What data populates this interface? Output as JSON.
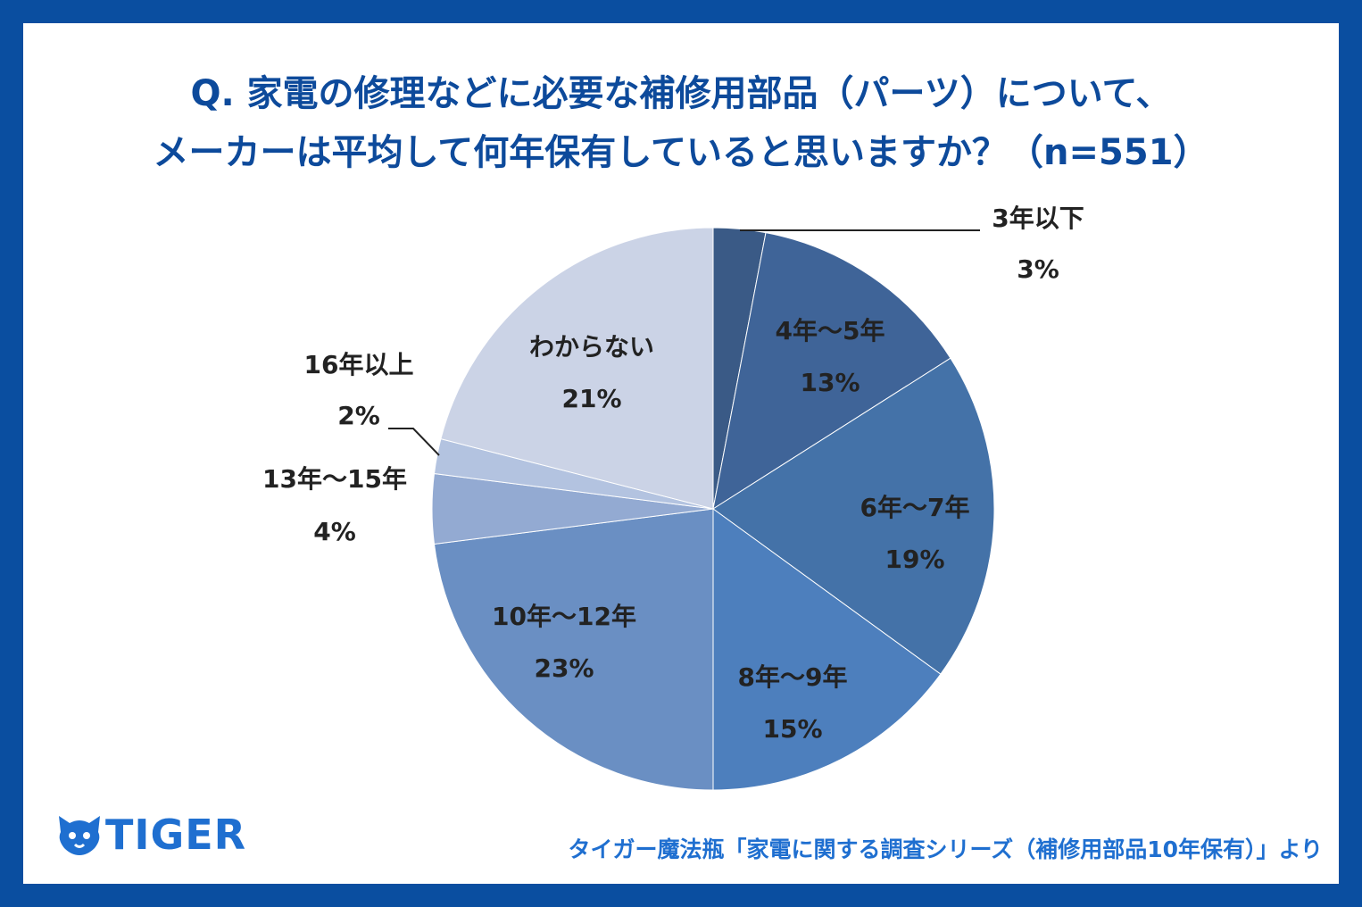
{
  "title": {
    "line1": "Q. 家電の修理などに必要な補修用部品（パーツ）について、",
    "line2": "メーカーは平均して何年保有していると思いますか？（n=551）"
  },
  "colors": {
    "frame": "#0a4ea0",
    "title": "#0d4a9b",
    "source": "#1f6fd0"
  },
  "chart_data": {
    "type": "pie",
    "categories": [
      "3年以下",
      "4年〜5年",
      "6年〜7年",
      "8年〜9年",
      "10年〜12年",
      "13年〜15年",
      "16年以上",
      "わからない"
    ],
    "values": [
      3,
      13,
      19,
      15,
      23,
      4,
      2,
      21
    ],
    "value_labels": [
      "3%",
      "13%",
      "19%",
      "15%",
      "23%",
      "4%",
      "2%",
      "21%"
    ],
    "colors": [
      "#3a5a86",
      "#3f6498",
      "#4472a8",
      "#4d7fbd",
      "#6a8fc3",
      "#93aad2",
      "#b3c3e0",
      "#cbd3e6"
    ],
    "start": "12 o'clock, clockwise"
  },
  "footer": {
    "logo": "TIGER",
    "logo_icon": "tiger-icon",
    "source": "タイガー魔法瓶「家電に関する調査シリーズ（補修用部品10年保有）」より"
  }
}
